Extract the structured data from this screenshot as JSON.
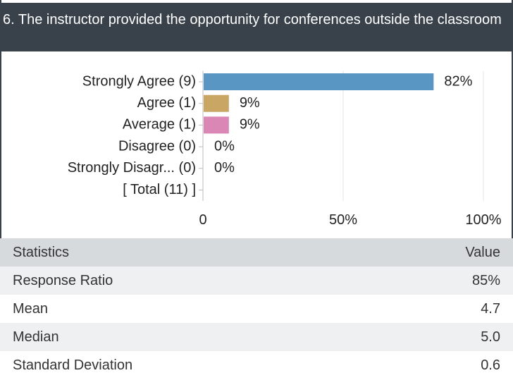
{
  "header": {
    "title": "6. The instructor provided the opportunity for conferences outside the classroom"
  },
  "chart_data": {
    "type": "bar",
    "orientation": "horizontal",
    "categories": [
      "Strongly Agree (9)",
      "Agree (1)",
      "Average (1)",
      "Disagree (0)",
      "Strongly Disagr... (0)"
    ],
    "total_label": "[ Total (11) ]",
    "values": [
      82,
      9,
      9,
      0,
      0
    ],
    "value_labels": [
      "82%",
      "9%",
      "9%",
      "0%",
      "0%"
    ],
    "colors": [
      "#5a96c3",
      "#c9a664",
      "#db87b6",
      "#888888",
      "#888888"
    ],
    "xlim": [
      0,
      100
    ],
    "xticks": [
      0,
      {
        "value": 50,
        "label": "50%"
      },
      {
        "value": 100,
        "label": "100%"
      }
    ],
    "grid": true
  },
  "table": {
    "header": [
      "Statistics",
      "Value"
    ],
    "rows": [
      [
        "Response Ratio",
        "85%"
      ],
      [
        "Mean",
        "4.7"
      ],
      [
        "Median",
        "5.0"
      ],
      [
        "Standard Deviation",
        "0.6"
      ]
    ]
  }
}
